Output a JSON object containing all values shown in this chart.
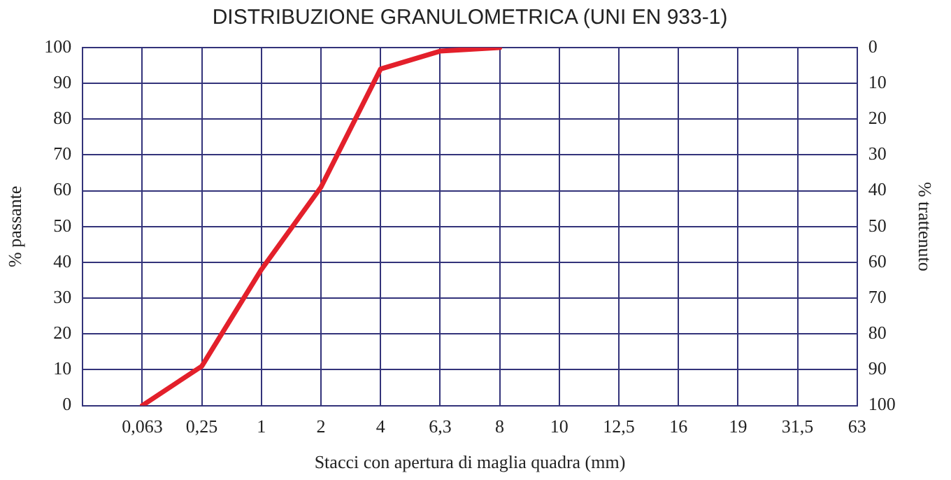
{
  "chart_data": {
    "type": "line",
    "title": "DISTRIBUZIONE GRANULOMETRICA (UNI EN 933-1)",
    "xlabel": "Stacci con apertura di maglia quadra (mm)",
    "ylabel": "% passante",
    "y2label": "% trattenuto",
    "categories": [
      null,
      "0,063",
      "0,25",
      "1",
      "2",
      "4",
      "6,3",
      "8",
      "10",
      "12,5",
      "16",
      "19",
      "31,5",
      "63"
    ],
    "series": [
      {
        "color": "#e3202b",
        "values": [
          null,
          0,
          11,
          38,
          61,
          94,
          99,
          100,
          null,
          null,
          null,
          null,
          null,
          null
        ]
      }
    ],
    "ylim": [
      0,
      100
    ],
    "yticks": [
      0,
      10,
      20,
      30,
      40,
      50,
      60,
      70,
      80,
      90,
      100
    ],
    "y2lim": [
      100,
      0
    ],
    "y2ticks": [
      0,
      10,
      20,
      30,
      40,
      50,
      60,
      70,
      80,
      90,
      100
    ],
    "grid": true,
    "legend": false,
    "marker": "none",
    "line_style": "solid"
  }
}
